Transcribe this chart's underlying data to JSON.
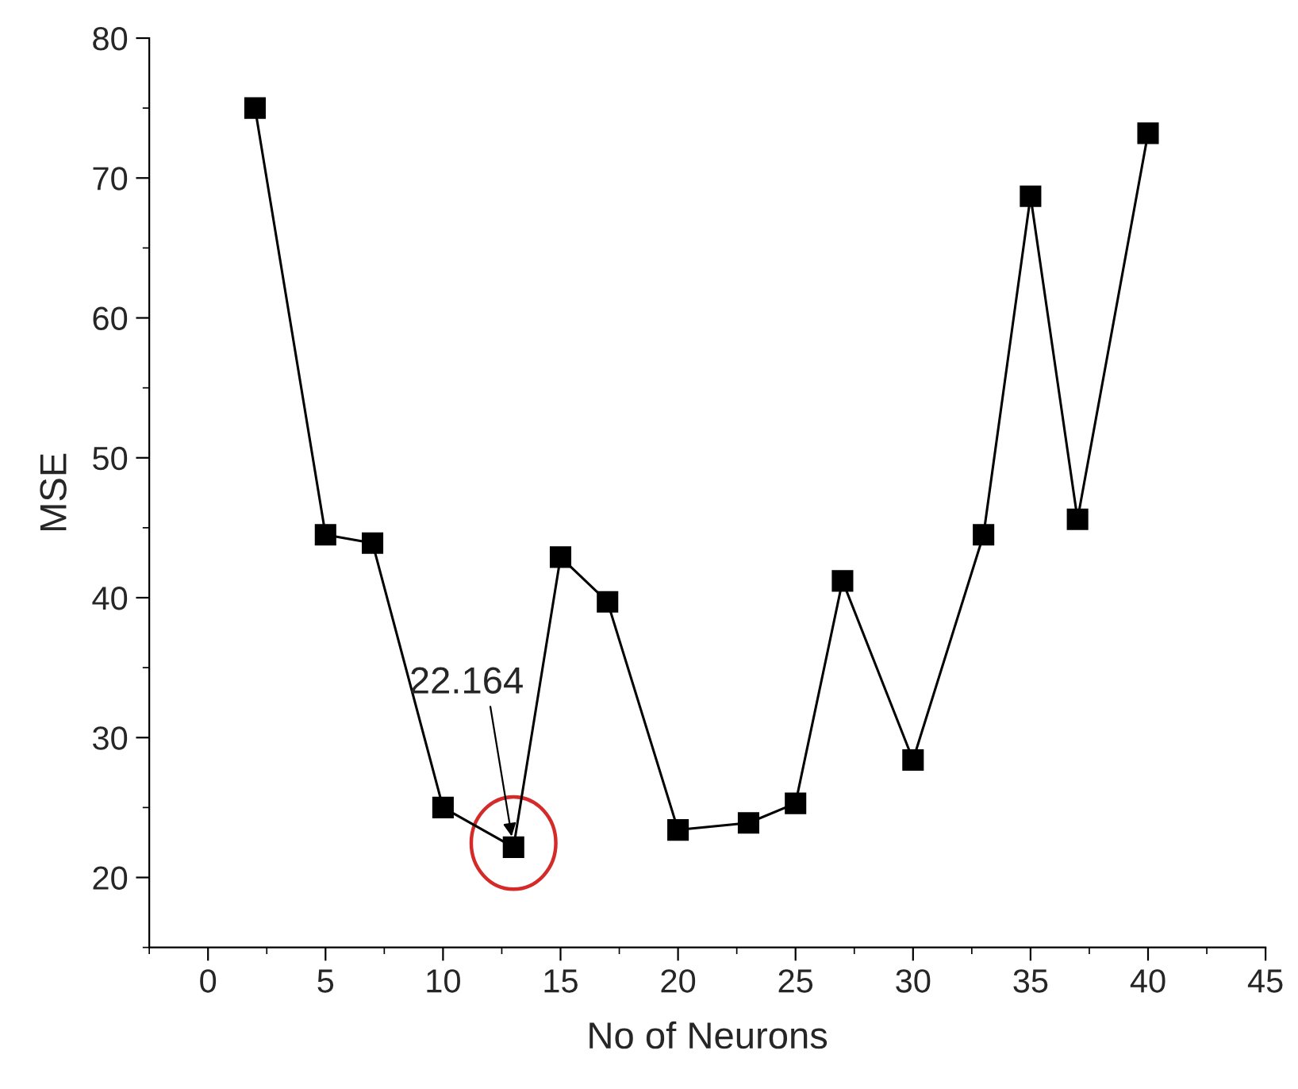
{
  "chart_data": {
    "type": "line",
    "xlabel": "No of Neurons",
    "ylabel": "MSE",
    "x": [
      2,
      5,
      7,
      10,
      13,
      15,
      17,
      20,
      23,
      25,
      27,
      30,
      33,
      35,
      37,
      40
    ],
    "series": [
      {
        "color": "#000000",
        "values": [
          75.0,
          44.5,
          43.9,
          25.0,
          22.164,
          42.9,
          39.7,
          23.4,
          23.9,
          25.3,
          41.2,
          28.4,
          44.5,
          68.7,
          45.6,
          73.2
        ]
      }
    ],
    "marker": "square",
    "line_style": "solid",
    "grid": false,
    "legend": false,
    "xlim": [
      -2.5,
      45
    ],
    "xticks": [
      0,
      5,
      10,
      15,
      20,
      25,
      30,
      35,
      40,
      45
    ],
    "ylim": [
      15,
      80
    ],
    "yticks": [
      20,
      30,
      40,
      50,
      60,
      70,
      80
    ],
    "annotations": [
      {
        "text": "22.164",
        "x": 13,
        "y": 22.164
      }
    ]
  }
}
